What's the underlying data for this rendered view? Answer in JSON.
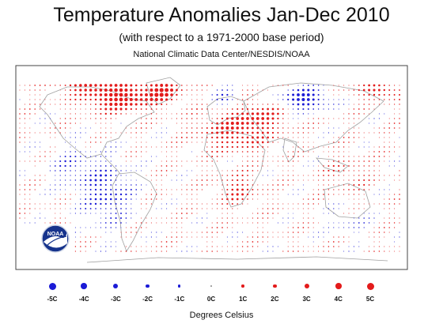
{
  "title": "Temperature Anomalies Jan-Dec 2010",
  "subtitle": "(with respect to a 1971-2000 base period)",
  "source": "National Climatic Data Center/NESDIS/NOAA",
  "logo_text": "NOAA",
  "legend": {
    "units": "Degrees Celsius",
    "items": [
      {
        "label": "-5C",
        "value": -5,
        "color": "#1b1bd6"
      },
      {
        "label": "-4C",
        "value": -4,
        "color": "#1b1bd6"
      },
      {
        "label": "-3C",
        "value": -3,
        "color": "#1b1bd6"
      },
      {
        "label": "-2C",
        "value": -2,
        "color": "#1b1bd6"
      },
      {
        "label": "-1C",
        "value": -1,
        "color": "#1b1bd6"
      },
      {
        "label": "0C",
        "value": 0,
        "color": "#888888"
      },
      {
        "label": "1C",
        "value": 1,
        "color": "#e31b1b"
      },
      {
        "label": "2C",
        "value": 2,
        "color": "#e31b1b"
      },
      {
        "label": "3C",
        "value": 3,
        "color": "#e31b1b"
      },
      {
        "label": "4C",
        "value": 4,
        "color": "#e31b1b"
      },
      {
        "label": "5C",
        "value": 5,
        "color": "#e31b1b"
      }
    ]
  },
  "colors": {
    "warm": "#e31b1b",
    "cool": "#1b1bd6",
    "coast": "#9a9a9a",
    "frame": "#444444"
  }
}
